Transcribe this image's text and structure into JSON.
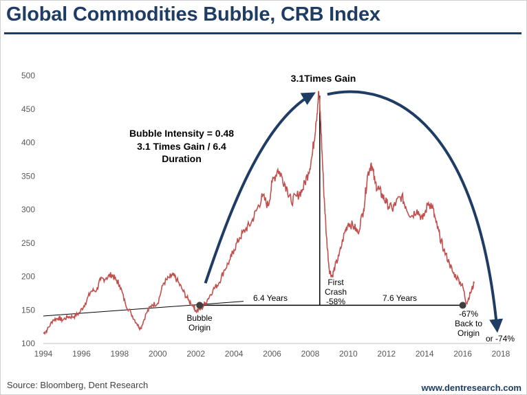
{
  "header": {
    "title": "Global Commodities Bubble, CRB Index"
  },
  "footer": {
    "source": "Source: Bloomberg, Dent Research",
    "website": "www.dentresearch.com"
  },
  "colors": {
    "title": "#1f3c64",
    "series": "#c0504d",
    "arrow": "#1f3c64",
    "annotation_line": "#000000",
    "marker": "#404040"
  },
  "chart_data": {
    "type": "line",
    "title": "Global Commodities Bubble, CRB Index",
    "xlabel": "",
    "ylabel": "",
    "xlim": [
      1994,
      2018
    ],
    "ylim": [
      100,
      500
    ],
    "x_ticks": [
      1994,
      1996,
      1998,
      2000,
      2002,
      2004,
      2006,
      2008,
      2010,
      2012,
      2014,
      2016,
      2018
    ],
    "y_ticks": [
      100,
      150,
      200,
      250,
      300,
      350,
      400,
      450,
      500
    ],
    "grid": false,
    "series": [
      {
        "name": "CRB Index",
        "x": [
          1994.0,
          1994.2,
          1994.5,
          1994.8,
          1995.0,
          1995.3,
          1995.6,
          1995.9,
          1996.2,
          1996.5,
          1996.8,
          1997.0,
          1997.3,
          1997.6,
          1997.8,
          1998.0,
          1998.3,
          1998.6,
          1998.9,
          1999.1,
          1999.4,
          1999.7,
          2000.0,
          2000.3,
          2000.6,
          2000.8,
          2001.0,
          2001.3,
          2001.6,
          2001.9,
          2002.0,
          2002.3,
          2002.6,
          2002.9,
          2003.2,
          2003.5,
          2003.8,
          2004.0,
          2004.3,
          2004.6,
          2004.9,
          2005.2,
          2005.5,
          2005.8,
          2006.0,
          2006.3,
          2006.5,
          2006.8,
          2007.0,
          2007.3,
          2007.6,
          2007.9,
          2008.1,
          2008.3,
          2008.45,
          2008.55,
          2008.7,
          2008.85,
          2009.0,
          2009.15,
          2009.3,
          2009.5,
          2009.8,
          2010.0,
          2010.3,
          2010.5,
          2010.8,
          2011.0,
          2011.2,
          2011.4,
          2011.6,
          2011.8,
          2012.0,
          2012.3,
          2012.5,
          2012.8,
          2013.0,
          2013.3,
          2013.6,
          2013.9,
          2014.2,
          2014.4,
          2014.6,
          2014.8,
          2015.0,
          2015.3,
          2015.5,
          2015.8,
          2016.0,
          2016.2,
          2016.4,
          2016.6
        ],
        "values": [
          115,
          120,
          135,
          138,
          135,
          140,
          140,
          146,
          160,
          178,
          180,
          195,
          198,
          203,
          195,
          188,
          160,
          145,
          130,
          122,
          145,
          158,
          160,
          190,
          198,
          202,
          195,
          180,
          165,
          155,
          148,
          152,
          165,
          180,
          190,
          210,
          225,
          240,
          258,
          270,
          280,
          300,
          320,
          305,
          340,
          360,
          350,
          330,
          312,
          320,
          330,
          355,
          380,
          430,
          475,
          430,
          335,
          260,
          210,
          200,
          215,
          230,
          265,
          280,
          275,
          265,
          300,
          350,
          370,
          340,
          330,
          320,
          310,
          300,
          310,
          320,
          305,
          290,
          300,
          285,
          310,
          305,
          280,
          260,
          240,
          220,
          205,
          195,
          185,
          160,
          175,
          190
        ]
      }
    ],
    "annotations": {
      "peak_label": "3.1Times Gain",
      "intensity_lines": [
        "Bubble Intensity = 0.48",
        "3.1 Times Gain / 6.4",
        "Duration"
      ],
      "bubble_origin": {
        "lines": [
          "Bubble",
          "Origin"
        ],
        "x": 2002.2,
        "y": 157
      },
      "first_crash": {
        "lines": [
          "First",
          "Crash",
          "-58%"
        ],
        "x": 2008.5
      },
      "years_left": "6.4 Years",
      "years_right": "7.6 Years",
      "back_to_origin": {
        "lines": [
          "-67%",
          "Back to",
          "Origin"
        ],
        "x": 2016.0,
        "y": 157
      },
      "projection": {
        "label": "or -74%",
        "x": 2017.8,
        "y": 122
      },
      "trendline": {
        "x": [
          1994.0,
          2004.5
        ],
        "y": [
          141,
          163
        ]
      }
    }
  }
}
